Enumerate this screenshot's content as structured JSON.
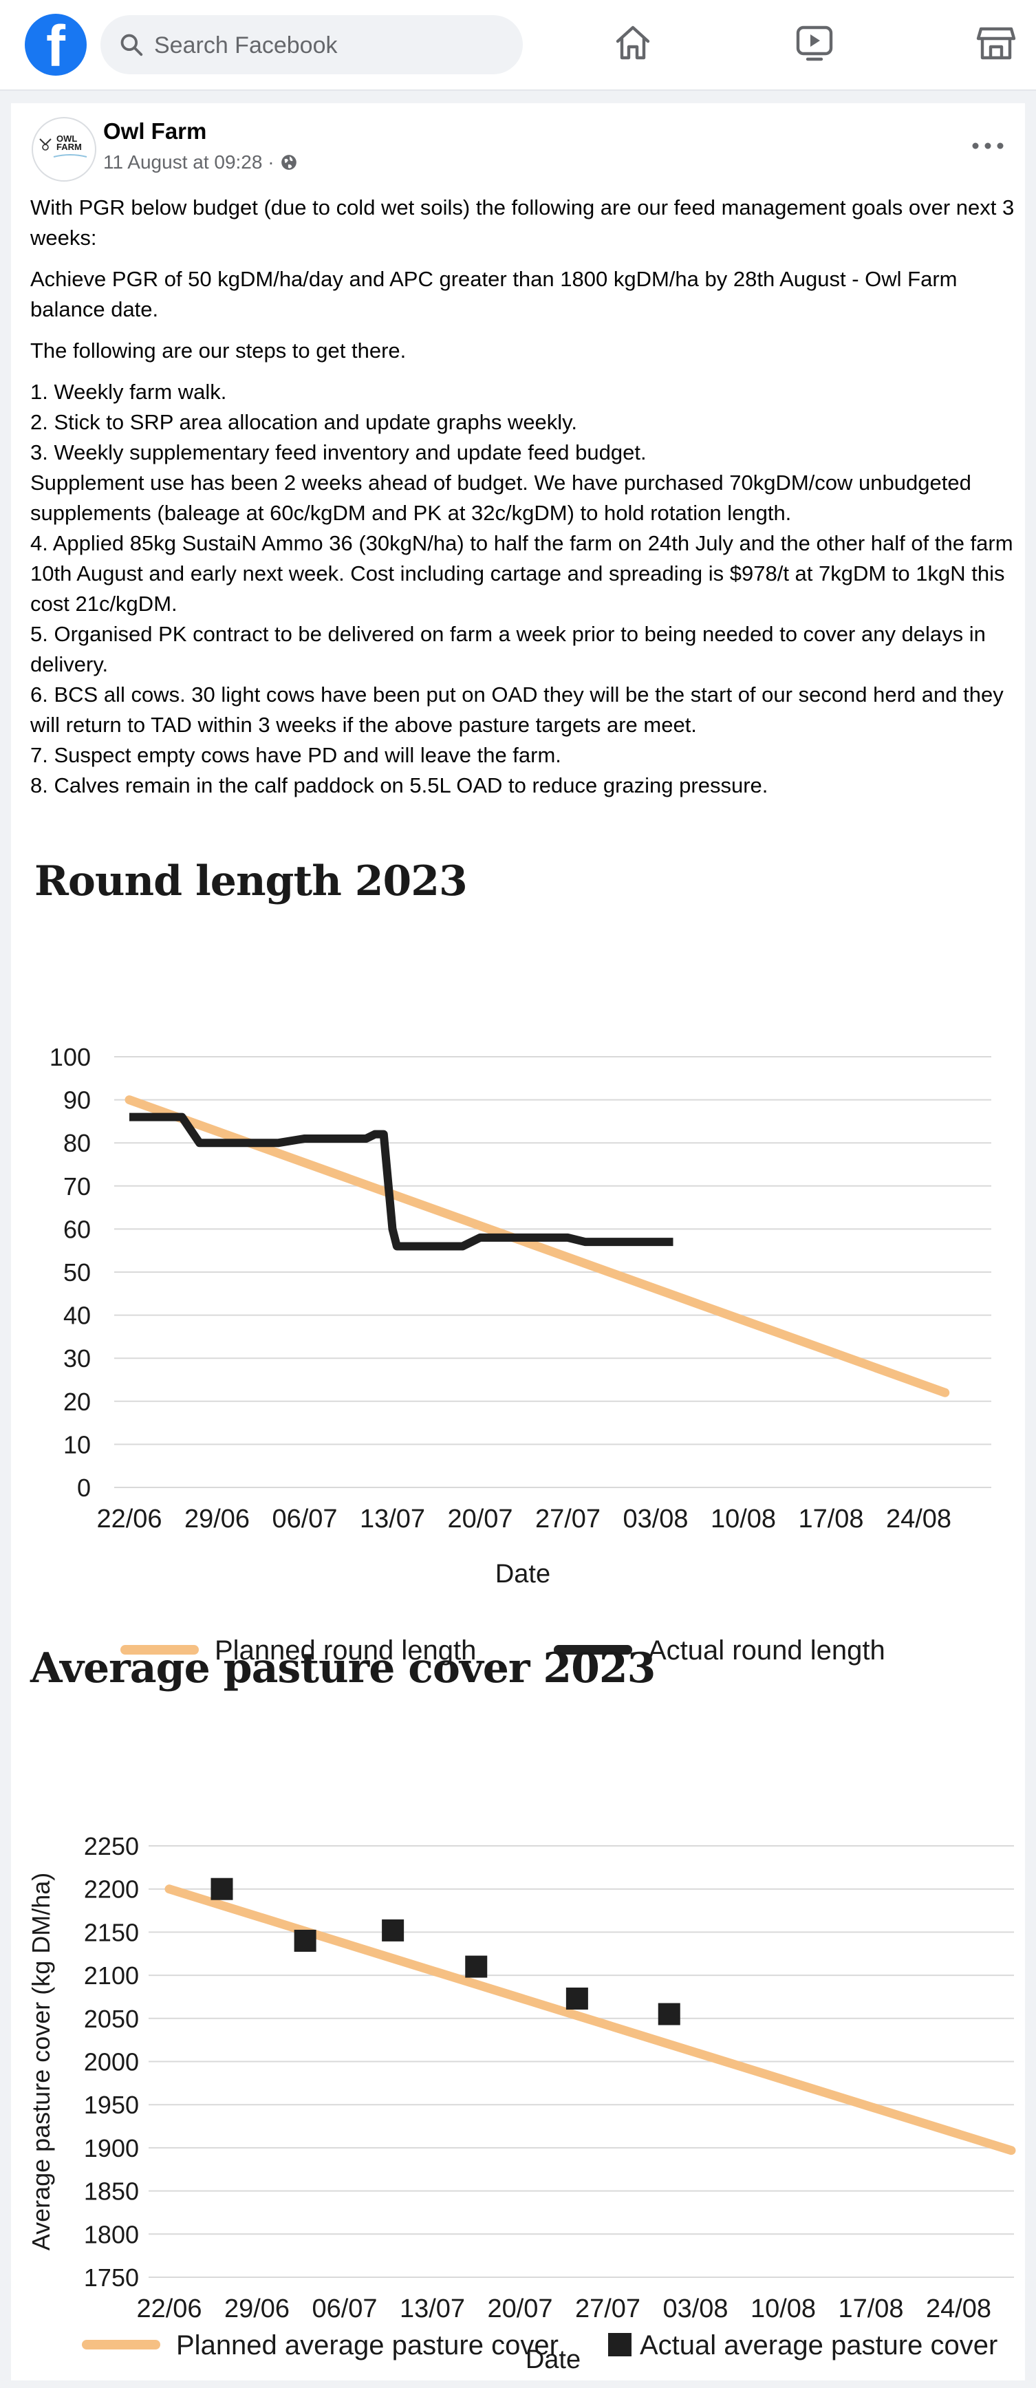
{
  "header": {
    "logo_letter": "f",
    "search_placeholder": "Search Facebook",
    "nav": [
      "home-icon",
      "video-icon",
      "marketplace-icon"
    ]
  },
  "post": {
    "author": "Owl Farm",
    "avatar_text": "OWL FARM",
    "timestamp": "11 August at 09:28 · ",
    "paragraphs": [
      "With PGR below budget (due to cold wet soils) the following are our feed management goals over next 3 weeks:",
      "Achieve PGR of 50 kgDM/ha/day and APC greater than 1800 kgDM/ha by 28th August - Owl Farm balance date.",
      "The following are our steps to get there."
    ],
    "steps": [
      "1. Weekly farm walk.",
      "2. Stick to SRP area allocation and update graphs weekly.",
      "3. Weekly supplementary feed inventory and update feed budget.",
      "Supplement use has been 2 weeks ahead of budget.  We have purchased 70kgDM/cow unbudgeted supplements (baleage at 60c/kgDM and PK at 32c/kgDM) to hold rotation length.",
      "4. Applied 85kg SustaiN Ammo 36 (30kgN/ha) to half the farm on 24th July and the other half of the farm 10th August and early next week. Cost including cartage and spreading is $978/t at 7kgDM to 1kgN this cost 21c/kgDM.",
      "5. Organised PK contract to be delivered on farm a week prior to being needed to cover any delays in delivery.",
      "6. BCS all cows. 30 light cows have been put on OAD they will be the start of our second herd and they will return to TAD within 3 weeks if the above pasture targets are meet.",
      "7. Suspect empty cows have PD and will leave the farm.",
      "8. Calves remain in the calf paddock on 5.5L OAD to reduce grazing pressure."
    ]
  },
  "colors": {
    "planned": "#f6c083",
    "actual": "#1f1f1f",
    "grid": "#d9d9d9",
    "brand": "#1877f2"
  },
  "chart_data": [
    {
      "type": "line",
      "title": "Round length 2023",
      "xlabel": "Date",
      "ylabel": "",
      "categories": [
        "22/06",
        "29/06",
        "06/07",
        "13/07",
        "20/07",
        "27/07",
        "03/08",
        "10/08",
        "17/08",
        "24/08"
      ],
      "yticks": [
        100,
        90,
        80,
        70,
        60,
        50,
        40,
        30,
        20,
        10,
        0
      ],
      "ylim": [
        0,
        100
      ],
      "series": [
        {
          "name": "Planned round length",
          "points": [
            [
              0,
              90
            ],
            [
              9.3,
              22
            ]
          ]
        },
        {
          "name": "Actual round length",
          "points": [
            [
              0,
              86
            ],
            [
              0.6,
              86
            ],
            [
              0.8,
              80
            ],
            [
              1.7,
              80
            ],
            [
              2.0,
              81
            ],
            [
              2.7,
              81
            ],
            [
              2.8,
              82
            ],
            [
              2.9,
              82
            ],
            [
              3.0,
              60
            ],
            [
              3.05,
              56
            ],
            [
              3.6,
              56
            ],
            [
              3.8,
              56
            ],
            [
              4.0,
              58
            ],
            [
              4.8,
              58
            ],
            [
              5.0,
              58
            ],
            [
              5.2,
              57
            ],
            [
              5.8,
              57
            ],
            [
              5.9,
              57
            ],
            [
              6.2,
              57
            ]
          ]
        }
      ],
      "legend": "bottom"
    },
    {
      "type": "line",
      "title": "Average pasture cover 2023",
      "xlabel": "Date",
      "ylabel": "Average pasture cover (kg DM/ha)",
      "categories": [
        "22/06",
        "29/06",
        "06/07",
        "13/07",
        "20/07",
        "27/07",
        "03/08",
        "10/08",
        "17/08",
        "24/08"
      ],
      "yticks": [
        2250,
        2200,
        2150,
        2100,
        2050,
        2000,
        1950,
        1900,
        1850,
        1800,
        1750
      ],
      "ylim": [
        1750,
        2250
      ],
      "series": [
        {
          "name": "Planned average pasture cover",
          "points": [
            [
              0,
              2200
            ],
            [
              9.6,
              1897
            ]
          ]
        },
        {
          "name": "Actual average pasture cover",
          "points": [
            [
              0.6,
              2200
            ],
            [
              1.55,
              2140
            ],
            [
              2.55,
              2152
            ],
            [
              3.5,
              2110
            ],
            [
              4.65,
              2073
            ],
            [
              5.7,
              2055
            ]
          ]
        }
      ],
      "legend": "bottom"
    }
  ]
}
